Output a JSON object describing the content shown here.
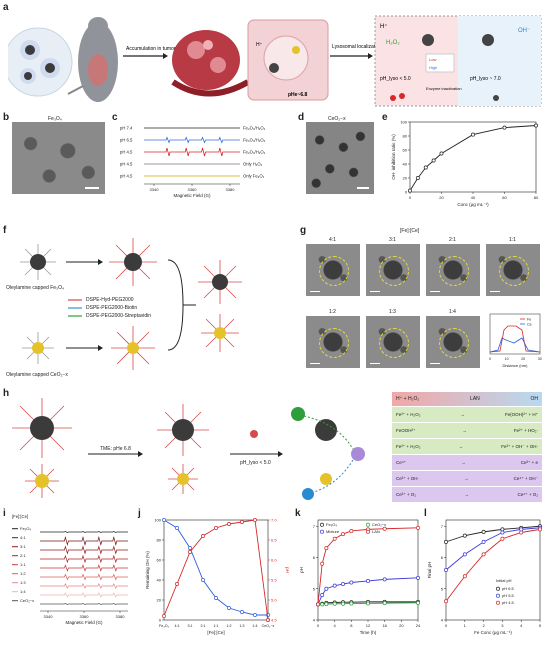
{
  "panels": {
    "a": {
      "letter": "a",
      "labels": [
        "Accumulation in tumor",
        "Lysosomal localization",
        "pHe~6.8",
        "H⁺",
        "H₂O₂",
        "OH⁻",
        "pH_lyso < 5.0",
        "pH_lyso ~ 7.0",
        "Enzyme inactivation",
        "Low",
        "High"
      ]
    },
    "b": {
      "letter": "b",
      "label": "Fe₃O₄"
    },
    "c": {
      "letter": "c",
      "rows": [
        {
          "ph": "pH 7.4",
          "name": "Fe₃O₄/H₂O₂",
          "color": "#222222"
        },
        {
          "ph": "pH 6.5",
          "name": "Fe₃O₄/H₂O₂",
          "color": "#3a6fd8"
        },
        {
          "ph": "pH 4.5",
          "name": "Fe₃O₄/H₂O₂",
          "color": "#d62828"
        },
        {
          "ph": "pH 4.5",
          "name": "Only H₂O₂",
          "color": "#777777"
        },
        {
          "ph": "pH 4.5",
          "name": "Only Fe₃O₄",
          "color": "#d8a800"
        }
      ],
      "xticks": [
        "3340",
        "3360",
        "3380"
      ],
      "xlabel": "Magnetic Field (G)"
    },
    "d": {
      "letter": "d",
      "label": "CeO₂−x"
    },
    "e": {
      "letter": "e"
    },
    "f": {
      "letter": "f",
      "legend": [
        "DSPE-Hyd-PEG2000",
        "DSPE-PEG2000-Biotin",
        "DSPE-PEG2000-Streptavidin"
      ],
      "captions": [
        "Oleylamine capped Fe₃O₄",
        "Oleylamine capped CeO₂−x"
      ]
    },
    "g": {
      "letter": "g",
      "header": "[Fe]:[Ce]",
      "ratios": [
        "4:1",
        "3:1",
        "2:1",
        "1:1",
        "1:2",
        "1:3",
        "1:4"
      ],
      "profile_legend": [
        "Fe",
        "Ce"
      ],
      "profile_xlabel": "Distance (nm)",
      "profile_xticks": [
        "0",
        "10",
        "20",
        "30"
      ]
    },
    "h": {
      "letter": "h",
      "labels": [
        "TME: pHe 6.8",
        "pH_lyso < 5.0",
        "H⁺ + H₂O₂",
        "LAN",
        "OH"
      ],
      "reactions": [
        [
          "Fe²⁺ + H₂O₂",
          "Fe(OOH)²⁺ + H⁺"
        ],
        [
          "FeOOH²⁺",
          "Fe²⁺ + HO₂·"
        ],
        [
          "Fe²⁺ + H₂O₂",
          "Fe³⁺ + OH⁻ + OH·"
        ],
        [
          "Ce⁴⁺",
          "Ce³⁺ + e"
        ],
        [
          "Ce³⁺ + OH·",
          "Ce⁴⁺ + OH⁻"
        ],
        [
          "Ce³⁺ + O₂",
          "Ce⁴⁺ + O₂"
        ]
      ]
    },
    "i": {
      "letter": "i",
      "legend_title": "[Fe]:[Ce]",
      "legend": [
        "Fe₃O₄",
        "4:1",
        "3:1",
        "2:1",
        "1:1",
        "1:2",
        "1:3",
        "1:4",
        "CeO₂−x"
      ],
      "xticks": [
        "3340",
        "3360",
        "3380"
      ],
      "xlabel": "Magnetic Field (G)"
    },
    "j": {
      "letter": "j"
    },
    "k": {
      "letter": "k"
    },
    "l": {
      "letter": "l"
    }
  },
  "chart_data": [
    {
      "id": "e",
      "type": "line",
      "xlabel": "Conc (μg mL⁻¹)",
      "ylabel": "OH· inhibition ratio (%)",
      "x": [
        0,
        5,
        10,
        15,
        20,
        40,
        60,
        80
      ],
      "series": [
        {
          "values": [
            2,
            20,
            35,
            45,
            55,
            82,
            92,
            95
          ]
        }
      ],
      "xlim": [
        0,
        80
      ],
      "ylim": [
        0,
        100
      ],
      "xticks": [
        0,
        20,
        40,
        60,
        80
      ],
      "yticks": [
        0,
        20,
        40,
        60,
        80,
        100
      ]
    },
    {
      "id": "j",
      "type": "line",
      "categories": [
        "Fe₃O₄",
        "4:1",
        "3:1",
        "2:1",
        "1:1",
        "1:2",
        "1:3",
        "1:4",
        "CeO₂−x"
      ],
      "xlabel": "[Fe]:[Ce]",
      "ylabel": "Remaining OH (%)",
      "y2label": "pH",
      "series": [
        {
          "name": "",
          "axis": "left",
          "color": "#2f5fd8",
          "values": [
            100,
            92,
            72,
            40,
            22,
            12,
            8,
            5,
            5
          ]
        },
        {
          "name": "",
          "axis": "right",
          "color": "#d62828",
          "values": [
            4.6,
            5.4,
            6.2,
            6.6,
            6.8,
            6.9,
            6.95,
            7.0,
            4.5
          ]
        }
      ],
      "ylim": [
        0,
        100
      ],
      "y2lim": [
        4.5,
        7.0
      ],
      "yticks": [
        0,
        20,
        40,
        60,
        80,
        100
      ],
      "y2ticks": [
        4.5,
        5.0,
        5.5,
        6.0,
        6.5,
        7.0
      ]
    },
    {
      "id": "k",
      "type": "line",
      "xlabel": "Time (h)",
      "ylabel": "pH",
      "x": [
        0,
        1,
        2,
        4,
        6,
        8,
        12,
        16,
        24
      ],
      "series": [
        {
          "name": "Fe₃O₄",
          "color": "#222222",
          "values": [
            4.5,
            4.52,
            4.55,
            4.56,
            4.57,
            4.57,
            4.58,
            4.58,
            4.58
          ]
        },
        {
          "name": "CeO₂−x",
          "color": "#2e9e3a",
          "values": [
            4.5,
            4.5,
            4.51,
            4.52,
            4.52,
            4.53,
            4.53,
            4.54,
            4.55
          ]
        },
        {
          "name": "Mixture",
          "color": "#3a3ad8",
          "values": [
            4.5,
            4.8,
            5.0,
            5.1,
            5.15,
            5.2,
            5.25,
            5.3,
            5.35
          ]
        },
        {
          "name": "LAN",
          "color": "#d62828",
          "values": [
            4.5,
            5.8,
            6.3,
            6.6,
            6.75,
            6.85,
            6.9,
            6.92,
            6.95
          ]
        }
      ],
      "xlim": [
        0,
        24
      ],
      "ylim": [
        4.0,
        7.2
      ],
      "xticks": [
        0,
        4,
        8,
        12,
        16,
        20,
        24
      ],
      "yticks": [
        4.0,
        5.0,
        6.0,
        7.0
      ]
    },
    {
      "id": "l",
      "type": "line",
      "xlabel": "Fe Conc (μg mL⁻¹)",
      "ylabel": "Final pH",
      "legend_title": "Initial pH",
      "x": [
        0,
        1,
        2,
        3,
        4,
        5
      ],
      "series": [
        {
          "name": "pH 6.5",
          "color": "#222222",
          "values": [
            6.5,
            6.7,
            6.82,
            6.9,
            6.95,
            7.0
          ]
        },
        {
          "name": "pH 5.5",
          "color": "#3a3ad8",
          "values": [
            5.6,
            6.1,
            6.5,
            6.8,
            6.9,
            6.95
          ]
        },
        {
          "name": "pH 4.5",
          "color": "#d62828",
          "values": [
            4.6,
            5.4,
            6.1,
            6.6,
            6.8,
            6.9
          ]
        }
      ],
      "xlim": [
        0,
        5
      ],
      "ylim": [
        4.0,
        7.2
      ],
      "xticks": [
        0,
        1,
        2,
        3,
        4,
        5
      ],
      "yticks": [
        4.0,
        5.0,
        6.0,
        7.0
      ]
    }
  ]
}
